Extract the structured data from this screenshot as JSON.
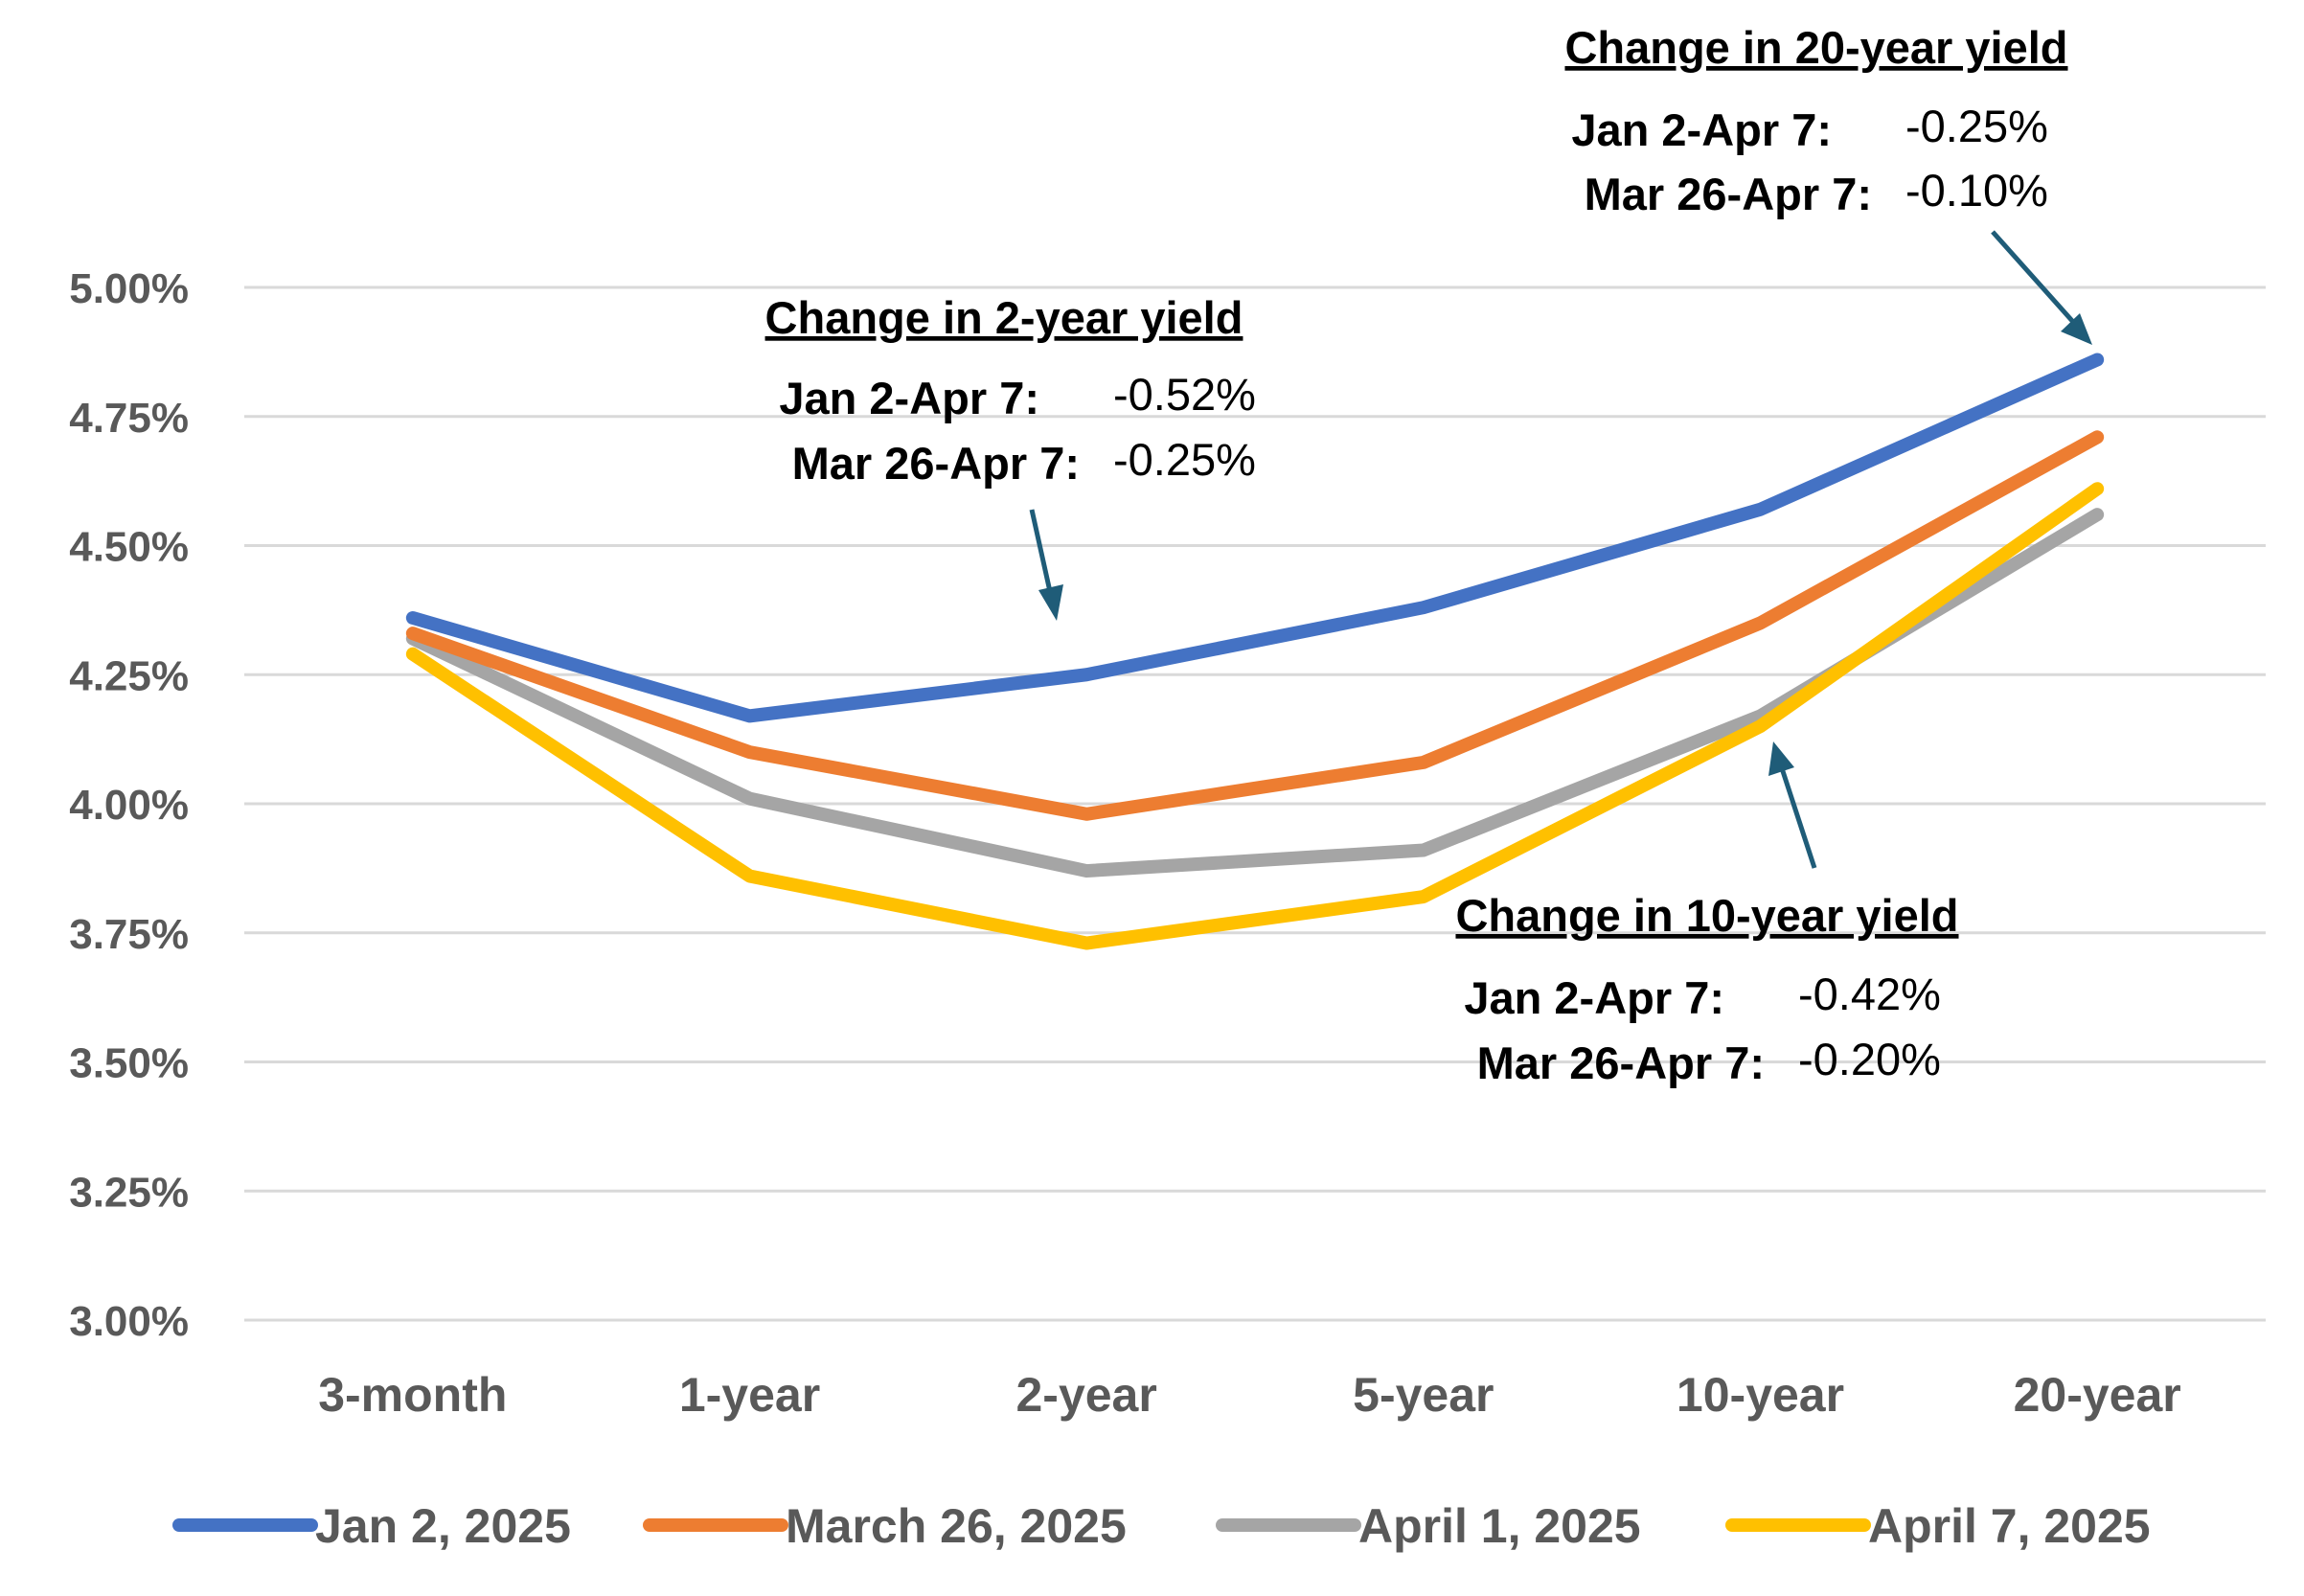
{
  "chart_data": {
    "type": "line",
    "title": "",
    "xlabel": "",
    "ylabel": "",
    "categories": [
      "3-month",
      "1-year",
      "2-year",
      "5-year",
      "10-year",
      "20-year"
    ],
    "ylim": [
      3.0,
      5.0
    ],
    "yticks": [
      3.0,
      3.25,
      3.5,
      3.75,
      4.0,
      4.25,
      4.5,
      4.75,
      5.0
    ],
    "ytick_labels": [
      "3.00%",
      "3.25%",
      "3.50%",
      "3.75%",
      "4.00%",
      "4.25%",
      "4.50%",
      "4.75%",
      "5.00%"
    ],
    "grid": true,
    "legend_position": "bottom",
    "series": [
      {
        "name": "Jan 2, 2025",
        "color": "#4472C4",
        "values": [
          4.36,
          4.17,
          4.25,
          4.38,
          4.57,
          4.86
        ]
      },
      {
        "name": "March 26, 2025",
        "color": "#ED7D31",
        "values": [
          4.33,
          4.1,
          3.98,
          4.08,
          4.35,
          4.71
        ]
      },
      {
        "name": "April 1, 2025",
        "color": "#A5A5A5",
        "values": [
          4.32,
          4.01,
          3.87,
          3.91,
          4.17,
          4.56
        ]
      },
      {
        "name": "April 7, 2025",
        "color": "#FFC000",
        "values": [
          4.29,
          3.86,
          3.73,
          3.82,
          4.15,
          4.61
        ]
      }
    ],
    "annotations": [
      {
        "id": "two-year",
        "title": "Change in 2-year yield",
        "rows": [
          {
            "label": "Jan 2-Apr 7:",
            "value": "-0.52%"
          },
          {
            "label": "Mar 26-Apr 7:",
            "value": "-0.25%"
          }
        ]
      },
      {
        "id": "twenty-year",
        "title": "Change in 20-year yield",
        "rows": [
          {
            "label": "Jan 2-Apr 7:",
            "value": "-0.25%"
          },
          {
            "label": "Mar 26-Apr 7:",
            "value": "-0.10%"
          }
        ]
      },
      {
        "id": "ten-year",
        "title": "Change in 10-year yield",
        "rows": [
          {
            "label": "Jan 2-Apr 7:",
            "value": "-0.42%"
          },
          {
            "label": "Mar 26-Apr 7:",
            "value": "-0.20%"
          }
        ]
      }
    ],
    "arrow_color": "#1F5C78"
  }
}
